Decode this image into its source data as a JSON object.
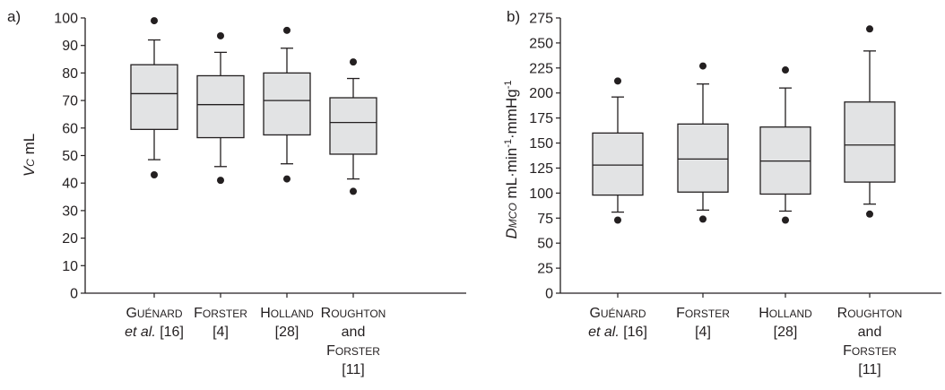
{
  "chart_data": [
    {
      "type": "box",
      "panel_label": "a)",
      "ylabel": {
        "italic": "V",
        "sub": "C",
        "unit": " mL"
      },
      "ylim": [
        0,
        100
      ],
      "yticks": [
        "0",
        "10",
        "20",
        "30",
        "40",
        "50",
        "60",
        "70",
        "80",
        "90",
        "100"
      ],
      "categories": [
        {
          "lines": [
            [
              {
                "t": "G",
                "sc": false
              },
              {
                "t": "UÉNARD",
                "sc": true
              }
            ],
            [
              {
                "t": "et al.",
                "it": true
              },
              {
                "t": " [16]"
              }
            ]
          ]
        },
        {
          "lines": [
            [
              {
                "t": "F",
                "sc": false
              },
              {
                "t": "ORSTER",
                "sc": true
              }
            ],
            [
              {
                "t": "[4]"
              }
            ]
          ]
        },
        {
          "lines": [
            [
              {
                "t": "H",
                "sc": false
              },
              {
                "t": "OLLAND",
                "sc": true
              }
            ],
            [
              {
                "t": "[28]"
              }
            ]
          ]
        },
        {
          "lines": [
            [
              {
                "t": "R",
                "sc": false
              },
              {
                "t": "OUGHTON",
                "sc": true
              }
            ],
            [
              {
                "t": "and"
              }
            ],
            [
              {
                "t": "F",
                "sc": false
              },
              {
                "t": "ORSTER",
                "sc": true
              }
            ],
            [
              {
                "t": "[11]"
              }
            ]
          ]
        }
      ],
      "boxes": [
        {
          "whisker_low": 48.5,
          "q1": 59.5,
          "median": 72.5,
          "q3": 83,
          "whisker_high": 92,
          "outliers": [
            99,
            43
          ]
        },
        {
          "whisker_low": 46,
          "q1": 56.5,
          "median": 68.5,
          "q3": 79,
          "whisker_high": 87.5,
          "outliers": [
            93.5,
            41
          ]
        },
        {
          "whisker_low": 47,
          "q1": 57.5,
          "median": 70,
          "q3": 80,
          "whisker_high": 89,
          "outliers": [
            95.5,
            41.5
          ]
        },
        {
          "whisker_low": 41.5,
          "q1": 50.5,
          "median": 62,
          "q3": 71,
          "whisker_high": 78,
          "outliers": [
            84,
            37
          ]
        }
      ]
    },
    {
      "type": "box",
      "panel_label": "b)",
      "ylabel": {
        "italic": "D",
        "sub": "MCO",
        "unit": " mL·min",
        "sup1": "-1",
        "mid": "·mmHg",
        "sup2": "-1"
      },
      "ylim": [
        0,
        275
      ],
      "yticks": [
        "0",
        "25",
        "50",
        "75",
        "100",
        "125",
        "150",
        "175",
        "200",
        "225",
        "250",
        "275"
      ],
      "categories": [
        {
          "lines": [
            [
              {
                "t": "G",
                "sc": false
              },
              {
                "t": "UÉNARD",
                "sc": true
              }
            ],
            [
              {
                "t": "et al.",
                "it": true
              },
              {
                "t": " [16]"
              }
            ]
          ]
        },
        {
          "lines": [
            [
              {
                "t": "F",
                "sc": false
              },
              {
                "t": "ORSTER",
                "sc": true
              }
            ],
            [
              {
                "t": "[4]"
              }
            ]
          ]
        },
        {
          "lines": [
            [
              {
                "t": "H",
                "sc": false
              },
              {
                "t": "OLLAND",
                "sc": true
              }
            ],
            [
              {
                "t": "[28]"
              }
            ]
          ]
        },
        {
          "lines": [
            [
              {
                "t": "R",
                "sc": false
              },
              {
                "t": "OUGHTON",
                "sc": true
              }
            ],
            [
              {
                "t": "and"
              }
            ],
            [
              {
                "t": "F",
                "sc": false
              },
              {
                "t": "ORSTER",
                "sc": true
              }
            ],
            [
              {
                "t": "[11]"
              }
            ]
          ]
        }
      ],
      "boxes": [
        {
          "whisker_low": 81,
          "q1": 98,
          "median": 128,
          "q3": 160,
          "whisker_high": 196,
          "outliers": [
            212,
            73
          ]
        },
        {
          "whisker_low": 83,
          "q1": 101,
          "median": 134,
          "q3": 169,
          "whisker_high": 209,
          "outliers": [
            227,
            74
          ]
        },
        {
          "whisker_low": 82,
          "q1": 99,
          "median": 132,
          "q3": 166,
          "whisker_high": 205,
          "outliers": [
            223,
            73
          ]
        },
        {
          "whisker_low": 89,
          "q1": 111,
          "median": 148,
          "q3": 191,
          "whisker_high": 242,
          "outliers": [
            264,
            79
          ]
        }
      ]
    }
  ]
}
